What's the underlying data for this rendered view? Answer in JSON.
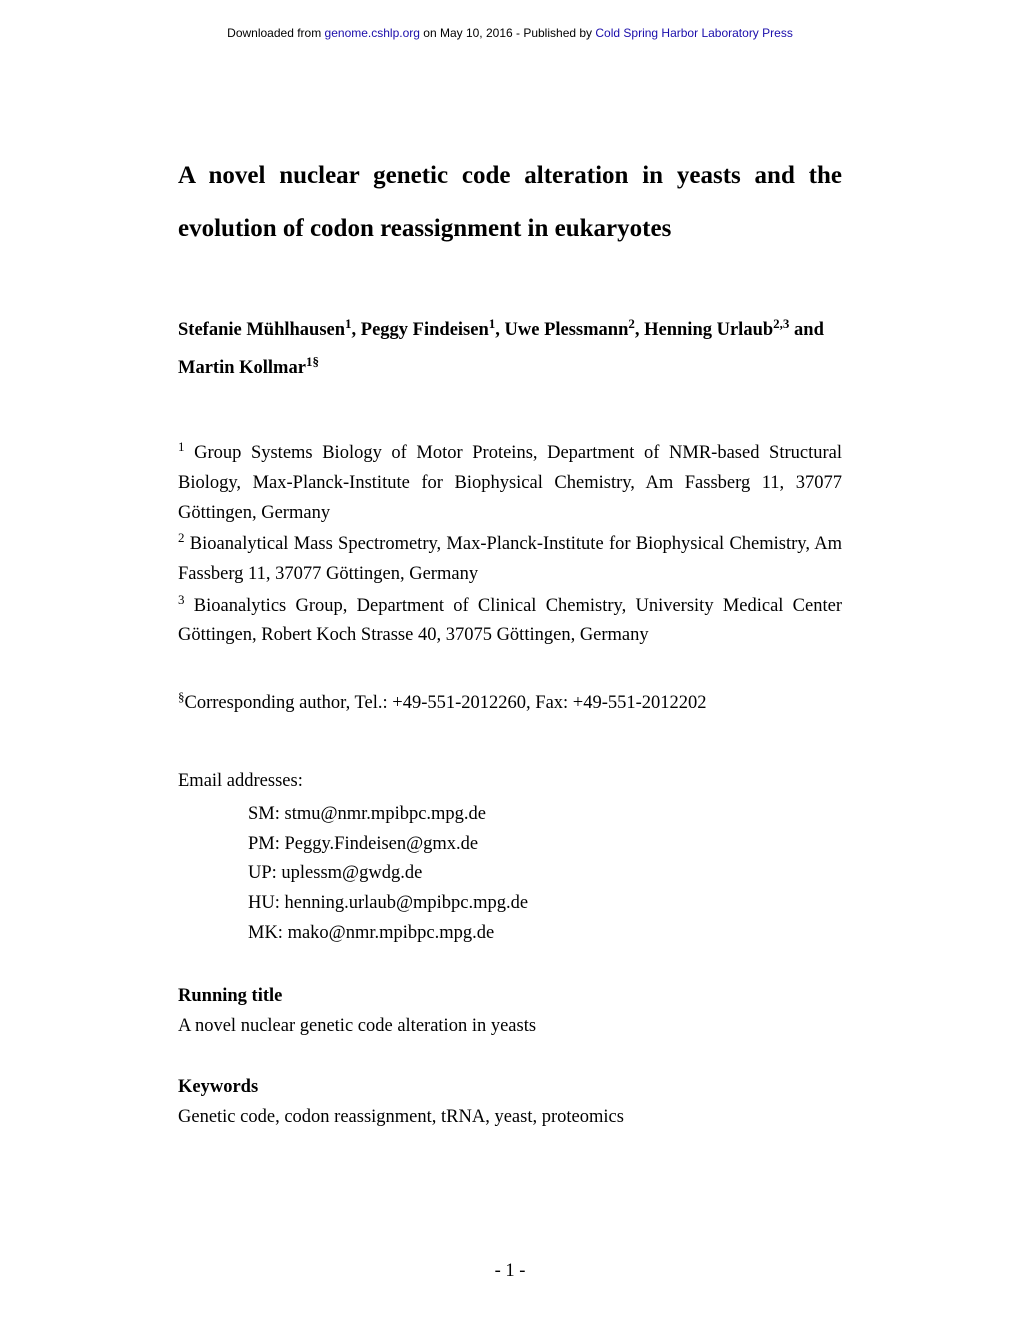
{
  "header": {
    "prefix": "Downloaded from ",
    "link1": "genome.cshlp.org",
    "middle": " on May 10, 2016 - Published by ",
    "link2": "Cold Spring Harbor Laboratory Press"
  },
  "title": "A novel nuclear genetic code alteration in yeasts and the evolution of codon reassignment in eukaryotes",
  "authors": {
    "a1_name": "Stefanie Mühlhausen",
    "a1_sup": "1",
    "a2_name": "Peggy Findeisen",
    "a2_sup": "1",
    "a3_name": "Uwe Plessmann",
    "a3_sup": "2",
    "a4_name": "Henning Urlaub",
    "a4_sup": "2,3",
    "a5_name": "Martin Kollmar",
    "a5_sup": "1§",
    "connector_and": "and"
  },
  "affiliations": {
    "aff1_sup": "1",
    "aff1_text": " Group Systems Biology of Motor Proteins, Department of NMR-based Structural Biology, Max-Planck-Institute for Biophysical Chemistry, Am Fassberg 11, 37077 Göttingen, Germany",
    "aff2_sup": "2",
    "aff2_text": " Bioanalytical Mass Spectrometry, Max-Planck-Institute for Biophysical Chemistry, Am Fassberg 11, 37077 Göttingen, Germany",
    "aff3_sup": "3",
    "aff3_text": " Bioanalytics Group, Department of Clinical Chemistry, University Medical Center Göttingen, Robert Koch Strasse 40, 37075 Göttingen, Germany"
  },
  "corresponding": {
    "sup": "§",
    "text": "Corresponding author, Tel.: +49-551-2012260, Fax: +49-551-2012202"
  },
  "emails": {
    "heading": "Email addresses:",
    "e1": "SM: stmu@nmr.mpibpc.mpg.de",
    "e2": "PM: Peggy.Findeisen@gmx.de",
    "e3": "UP: uplessm@gwdg.de",
    "e4": "HU: henning.urlaub@mpibpc.mpg.de",
    "e5": "MK: mako@nmr.mpibpc.mpg.de"
  },
  "running_title": {
    "label": "Running title",
    "text": "A novel nuclear genetic code alteration in yeasts"
  },
  "keywords": {
    "label": "Keywords",
    "text": "Genetic code, codon reassignment, tRNA, yeast, proteomics"
  },
  "page_number": "- 1 -",
  "colors": {
    "background": "#ffffff",
    "text": "#000000",
    "link": "#1a0dab"
  },
  "typography": {
    "body_font": "Times New Roman",
    "header_font": "Arial",
    "title_fontsize_pt": 19,
    "body_fontsize_pt": 14,
    "header_fontsize_pt": 9
  }
}
